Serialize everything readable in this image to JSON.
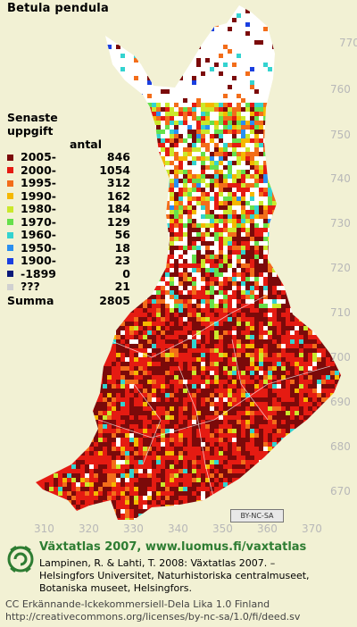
{
  "title": "Betula pendula",
  "legend": {
    "heading": "Senaste",
    "heading2": "uppgift",
    "count_header": "antal",
    "rows": [
      {
        "label": "2005-",
        "count": "846",
        "color": "#7b0a0a"
      },
      {
        "label": "2000-",
        "count": "1054",
        "color": "#e51b12"
      },
      {
        "label": "1995-",
        "count": "312",
        "color": "#f36d1a"
      },
      {
        "label": "1990-",
        "count": "162",
        "color": "#f5b800"
      },
      {
        "label": "1980-",
        "count": "184",
        "color": "#cbe82b"
      },
      {
        "label": "1970-",
        "count": "129",
        "color": "#66e04b"
      },
      {
        "label": "1960-",
        "count": "56",
        "color": "#33d3d0"
      },
      {
        "label": "1950-",
        "count": "18",
        "color": "#2a8ff0"
      },
      {
        "label": "1900-",
        "count": "23",
        "color": "#1a3fe0"
      },
      {
        "label": "-1899",
        "count": "0",
        "color": "#0a1a7a"
      },
      {
        "label": "???",
        "count": "21",
        "color": "#d0d0d0"
      }
    ],
    "sum_label": "Summa",
    "sum_value": "2805"
  },
  "map_data": {
    "x_grid_labels": [
      "310",
      "320",
      "330",
      "340",
      "350",
      "360",
      "370"
    ],
    "y_grid_labels": [
      "770",
      "760",
      "750",
      "740",
      "730",
      "720",
      "710",
      "700",
      "690",
      "680",
      "670"
    ],
    "land_color": "#ffffff",
    "background_color": "#f2f1d4"
  },
  "cc_badge": "BY-NC-SA",
  "footer": {
    "line1": "Växtatlas 2007, www.luomus.fi/vaxtatlas",
    "line2": "Lampinen, R. & Lahti, T. 2008: Växtatlas 2007. –",
    "line3": "Helsingfors Universitet, Naturhistoriska centralmuseet,",
    "line4": "Botaniska museet, Helsingfors.",
    "line5": "CC Erkännande-Ickekommersiell-Dela Lika 1.0 Finland",
    "line6": "http://creativecommons.org/licenses/by-nc-sa/1.0/fi/deed.sv"
  }
}
